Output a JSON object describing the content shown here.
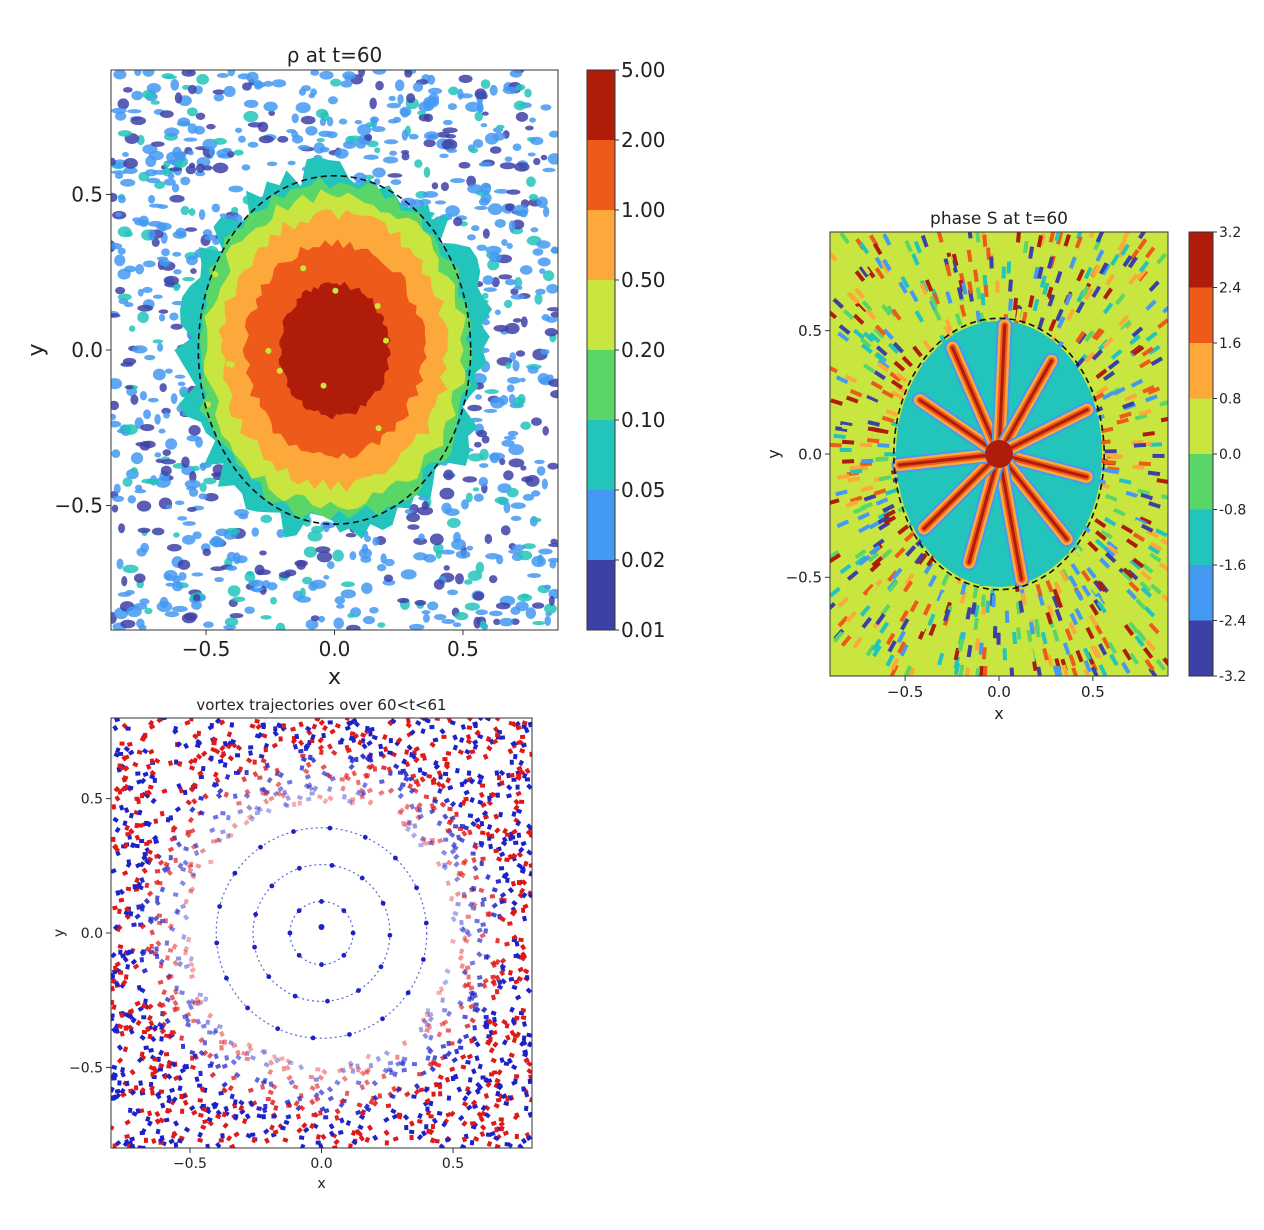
{
  "chart_data": [
    {
      "id": "density",
      "type": "heatmap",
      "title": "ρ at t=60",
      "xlabel": "x",
      "ylabel": "y",
      "xlim": [
        -0.87,
        0.87
      ],
      "ylim": [
        -0.9,
        0.9
      ],
      "xticks": [
        -0.5,
        0.0,
        0.5
      ],
      "yticks": [
        0.5,
        0.0,
        -0.5
      ],
      "xtick_labels": [
        "−0.5",
        "0.0",
        "0.5"
      ],
      "ytick_labels": [
        "0.5",
        "0.0",
        "−0.5"
      ],
      "colorbar": {
        "scale": "log",
        "levels": [
          5.0,
          2.0,
          1.0,
          0.5,
          0.2,
          0.1,
          0.05,
          0.02,
          0.01
        ],
        "labels": [
          "5.00",
          "2.00",
          "1.00",
          "0.50",
          "0.20",
          "0.10",
          "0.05",
          "0.02",
          "0.01"
        ],
        "colors": [
          "#b01c0a",
          "#ee5a1a",
          "#fca83a",
          "#c9e640",
          "#5ad668",
          "#22c4bb",
          "#4499f2",
          "#3d41a6"
        ]
      },
      "overlay": {
        "shape": "dashed-ellipse",
        "center": [
          0.0,
          0.0
        ],
        "rx": 0.53,
        "ry": 0.56,
        "color": "#111111"
      }
    },
    {
      "id": "phase",
      "type": "heatmap",
      "title": "phase S at t=60",
      "xlabel": "x",
      "ylabel": "y",
      "xlim": [
        -0.9,
        0.9
      ],
      "ylim": [
        -0.9,
        0.9
      ],
      "xticks": [
        -0.5,
        0.0,
        0.5
      ],
      "yticks": [
        0.5,
        0.0,
        -0.5
      ],
      "xtick_labels": [
        "−0.5",
        "0.0",
        "0.5"
      ],
      "ytick_labels": [
        "0.5",
        "0.0",
        "−0.5"
      ],
      "colorbar": {
        "scale": "linear",
        "levels": [
          3.2,
          2.4,
          1.6,
          0.8,
          0.0,
          -0.8,
          -1.6,
          -2.4,
          -3.2
        ],
        "labels": [
          "3.2",
          "2.4",
          "1.6",
          "0.8",
          "0.0",
          "-0.8",
          "-1.6",
          "-2.4",
          "-3.2"
        ],
        "colors": [
          "#b01c0a",
          "#ee5a1a",
          "#fca83a",
          "#c9e640",
          "#5ad668",
          "#22c4bb",
          "#4499f2",
          "#3d41a6"
        ]
      },
      "overlay": {
        "shape": "dashed-ellipse",
        "center": [
          0.0,
          0.0
        ],
        "rx": 0.56,
        "ry": 0.55,
        "color": "#111111"
      }
    },
    {
      "id": "trajectories",
      "type": "scatter",
      "title": "vortex trajectories over 60<t<61",
      "xlabel": "x",
      "ylabel": "y",
      "xlim": [
        -0.8,
        0.8
      ],
      "ylim": [
        -0.8,
        0.8
      ],
      "xticks": [
        -0.5,
        0.0,
        0.5
      ],
      "yticks": [
        0.5,
        0.0,
        -0.5
      ],
      "xtick_labels": [
        "−0.5",
        "0.0",
        "0.5"
      ],
      "ytick_labels": [
        "0.5",
        "0.0",
        "−0.5"
      ],
      "ring_radii": [
        0.12,
        0.26,
        0.4
      ],
      "clear_radius": 0.5,
      "colors": {
        "positive": "#e01818",
        "negative": "#1c22c8"
      }
    }
  ]
}
